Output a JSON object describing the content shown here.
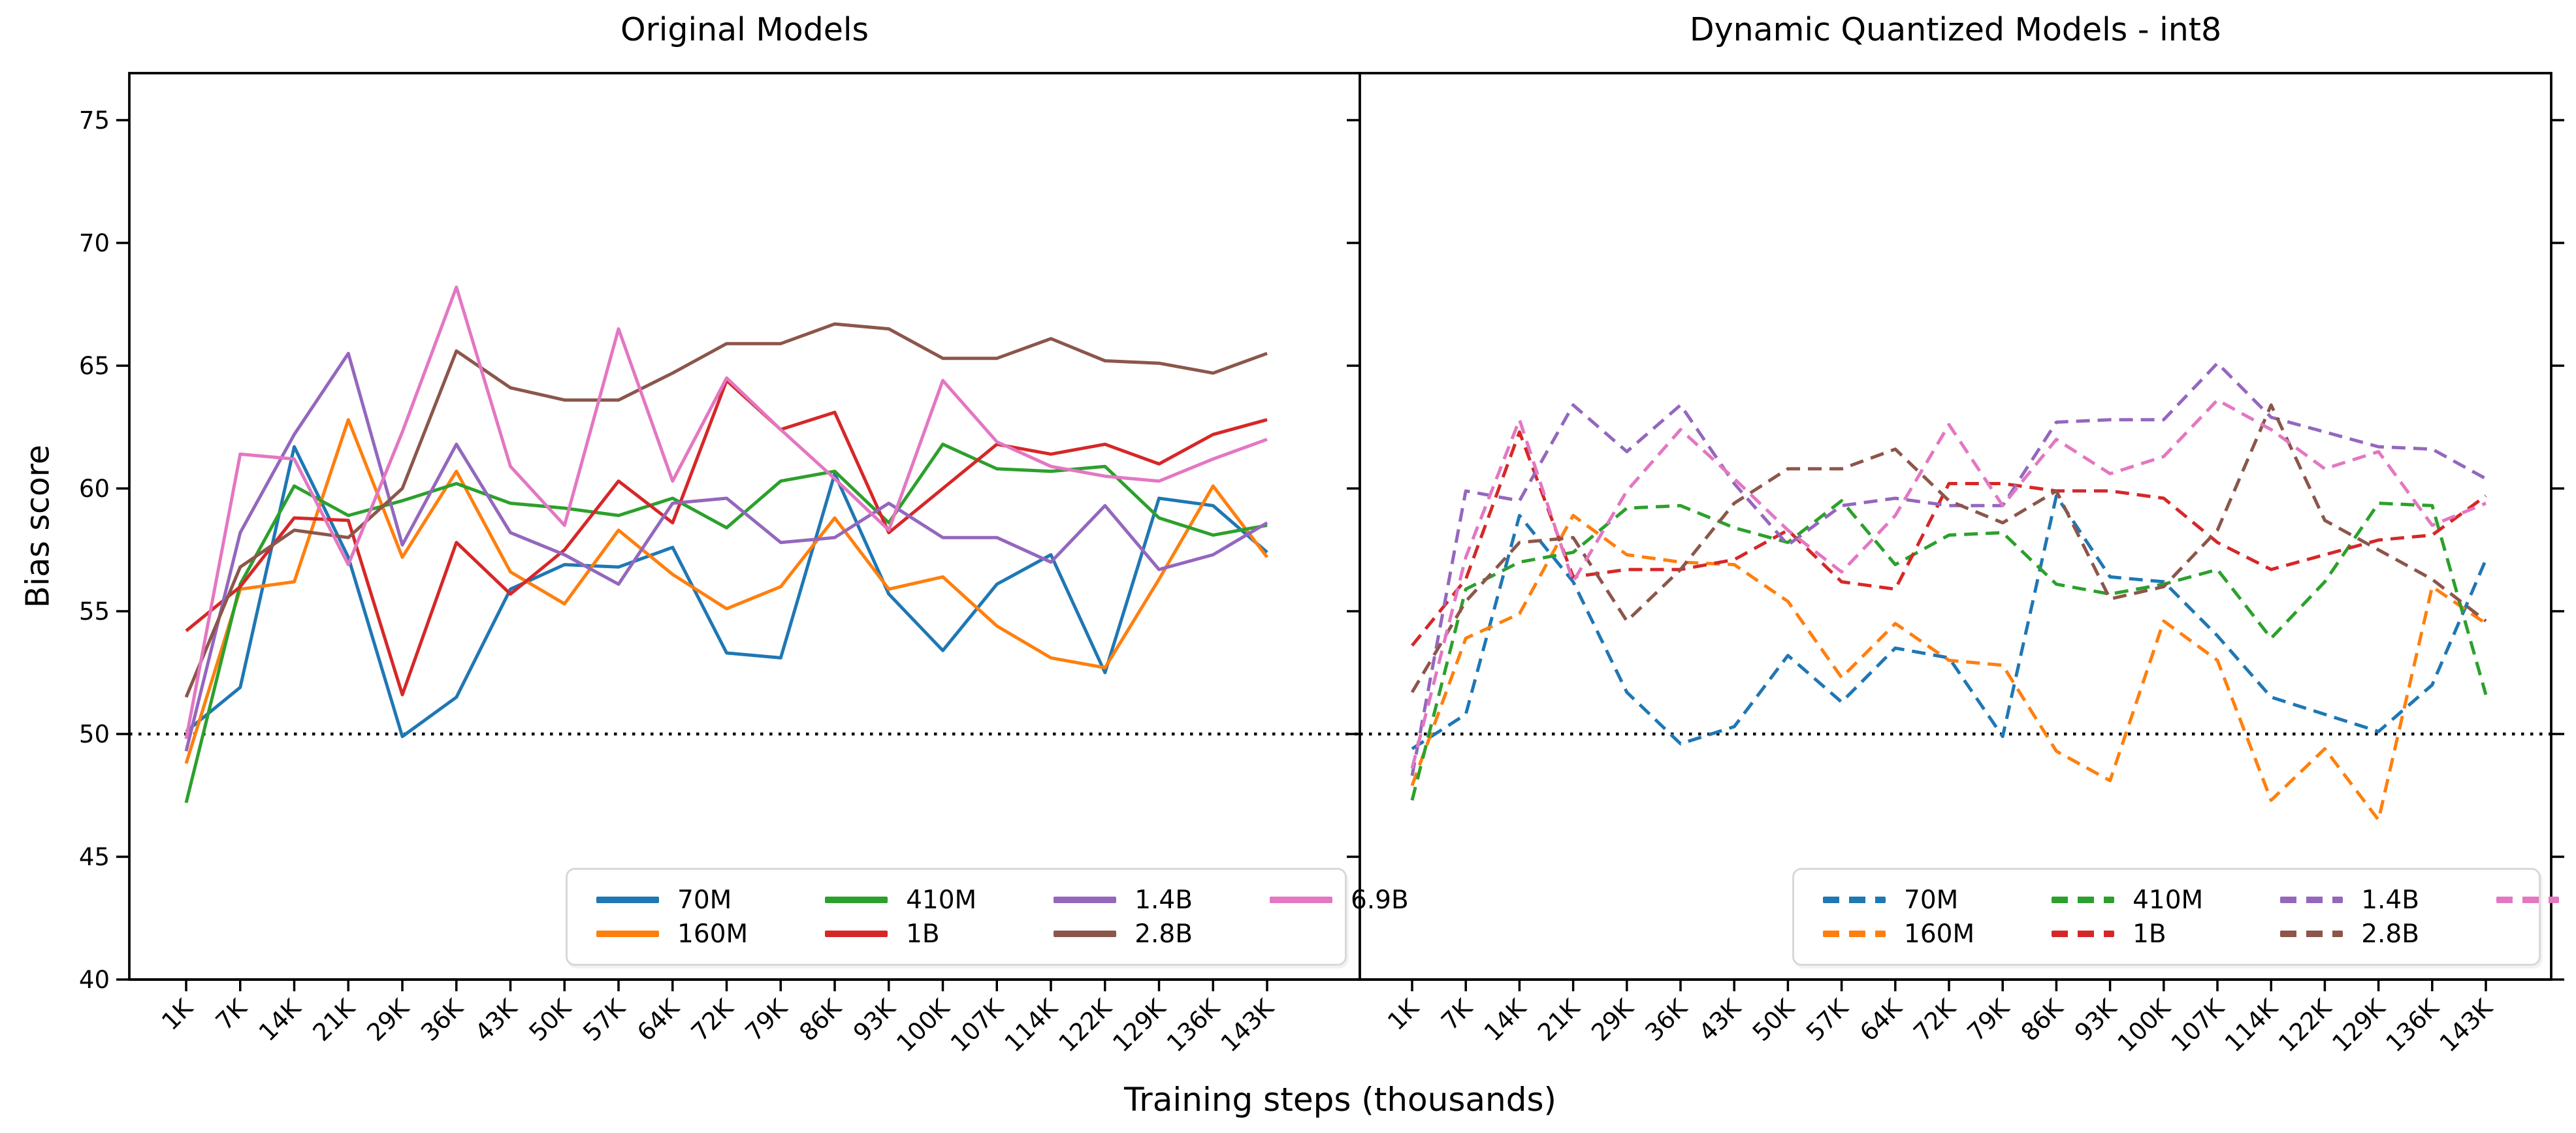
{
  "figure": {
    "background": "#ffffff"
  },
  "y_axis": {
    "label": "Bias score",
    "ticks": [
      40,
      45,
      50,
      55,
      60,
      65,
      70,
      75
    ],
    "range": [
      40,
      76.9
    ]
  },
  "x_axis": {
    "label": "Training steps (thousands)"
  },
  "reference_line": {
    "value": 50,
    "style": "dotted",
    "color": "#000000"
  },
  "legend": {
    "labels": [
      "70M",
      "160M",
      "410M",
      "1B",
      "1.4B",
      "2.8B",
      "6.9B"
    ]
  },
  "chart_data": [
    {
      "type": "line",
      "title": "Original Models",
      "line_style": "solid",
      "xlabel": "Training steps (thousands)",
      "ylabel": "Bias score",
      "ylim": [
        40,
        76.9
      ],
      "grid": false,
      "legend_position": "lower right",
      "categories": [
        "1K",
        "7K",
        "14K",
        "21K",
        "29K",
        "36K",
        "43K",
        "50K",
        "57K",
        "64K",
        "72K",
        "79K",
        "86K",
        "93K",
        "100K",
        "107K",
        "114K",
        "122K",
        "129K",
        "136K",
        "143K"
      ],
      "series": [
        {
          "name": "70M",
          "color": "#1f77b4",
          "values": [
            50.1,
            51.9,
            61.7,
            57.2,
            49.9,
            51.5,
            55.9,
            56.9,
            56.8,
            57.6,
            53.3,
            53.1,
            60.6,
            55.7,
            53.4,
            56.1,
            57.3,
            52.5,
            59.6,
            59.3,
            57.4
          ]
        },
        {
          "name": "160M",
          "color": "#ff7f0e",
          "values": [
            48.8,
            55.9,
            56.2,
            62.8,
            57.2,
            60.7,
            56.6,
            55.3,
            58.3,
            56.5,
            55.1,
            56.0,
            58.8,
            55.9,
            56.4,
            54.4,
            53.1,
            52.7,
            56.3,
            60.1,
            57.2
          ]
        },
        {
          "name": "410M",
          "color": "#2ca02c",
          "values": [
            47.2,
            56.1,
            60.1,
            58.9,
            59.5,
            60.2,
            59.4,
            59.2,
            58.9,
            59.6,
            58.4,
            60.3,
            60.7,
            58.6,
            61.8,
            60.8,
            60.7,
            60.9,
            58.8,
            58.1,
            58.5
          ]
        },
        {
          "name": "1B",
          "color": "#d62728",
          "values": [
            54.2,
            56.0,
            58.8,
            58.7,
            51.6,
            57.8,
            55.7,
            57.5,
            60.3,
            58.6,
            64.4,
            62.4,
            63.1,
            58.2,
            60.0,
            61.8,
            61.4,
            61.8,
            61.0,
            62.2,
            62.8
          ]
        },
        {
          "name": "1.4B",
          "color": "#9467bd",
          "values": [
            49.3,
            58.2,
            62.2,
            65.5,
            57.7,
            61.8,
            58.2,
            57.3,
            56.1,
            59.4,
            59.6,
            57.8,
            58.0,
            59.4,
            58.0,
            58.0,
            57.0,
            59.3,
            56.7,
            57.3,
            58.6
          ]
        },
        {
          "name": "2.8B",
          "color": "#8c564b",
          "values": [
            51.5,
            56.8,
            58.3,
            58.0,
            60.0,
            65.6,
            64.1,
            63.6,
            63.6,
            64.7,
            65.9,
            65.9,
            66.7,
            66.5,
            65.3,
            65.3,
            66.1,
            65.2,
            65.1,
            64.7,
            65.5
          ]
        },
        {
          "name": "6.9B",
          "color": "#e377c2",
          "values": [
            49.8,
            61.4,
            61.2,
            56.9,
            62.3,
            68.2,
            60.9,
            58.5,
            66.5,
            60.3,
            64.5,
            62.4,
            60.4,
            58.3,
            64.4,
            61.9,
            60.9,
            60.5,
            60.3,
            61.2,
            62.0
          ]
        }
      ]
    },
    {
      "type": "line",
      "title": "Dynamic Quantized Models - int8",
      "line_style": "dashed",
      "xlabel": "Training steps (thousands)",
      "ylabel": "Bias score",
      "ylim": [
        40,
        76.9
      ],
      "grid": false,
      "legend_position": "lower right",
      "categories": [
        "1K",
        "7K",
        "14K",
        "21K",
        "29K",
        "36K",
        "43K",
        "50K",
        "57K",
        "64K",
        "72K",
        "79K",
        "86K",
        "93K",
        "100K",
        "107K",
        "114K",
        "122K",
        "129K",
        "136K",
        "143K"
      ],
      "series": [
        {
          "name": "70M",
          "color": "#1f77b4",
          "values": [
            49.4,
            50.8,
            58.9,
            56.2,
            51.7,
            49.6,
            50.3,
            53.2,
            51.3,
            53.5,
            53.1,
            49.9,
            59.7,
            56.4,
            56.2,
            54.0,
            51.5,
            50.8,
            50.1,
            52.0,
            57.1
          ]
        },
        {
          "name": "160M",
          "color": "#ff7f0e",
          "values": [
            47.9,
            53.9,
            54.9,
            58.9,
            57.3,
            57.0,
            56.9,
            55.4,
            52.3,
            54.5,
            53.0,
            52.8,
            49.3,
            48.1,
            54.6,
            53.0,
            47.3,
            49.4,
            46.5,
            56.0,
            54.5
          ]
        },
        {
          "name": "410M",
          "color": "#2ca02c",
          "values": [
            47.3,
            55.9,
            57.0,
            57.4,
            59.2,
            59.3,
            58.4,
            57.8,
            59.5,
            56.9,
            58.1,
            58.2,
            56.1,
            55.7,
            56.1,
            56.7,
            53.9,
            56.2,
            59.4,
            59.3,
            51.6
          ]
        },
        {
          "name": "1B",
          "color": "#d62728",
          "values": [
            53.6,
            56.3,
            62.3,
            56.4,
            56.7,
            56.7,
            57.1,
            58.3,
            56.2,
            55.9,
            60.2,
            60.2,
            59.9,
            59.9,
            59.6,
            57.8,
            56.7,
            57.3,
            57.9,
            58.1,
            59.7
          ]
        },
        {
          "name": "1.4B",
          "color": "#9467bd",
          "values": [
            48.3,
            59.9,
            59.5,
            63.4,
            61.5,
            63.4,
            60.2,
            57.7,
            59.3,
            59.6,
            59.3,
            59.3,
            62.7,
            62.8,
            62.8,
            65.1,
            62.9,
            62.3,
            61.7,
            61.6,
            60.4
          ]
        },
        {
          "name": "2.8B",
          "color": "#8c564b",
          "values": [
            51.7,
            55.4,
            57.8,
            58.0,
            54.6,
            56.7,
            59.4,
            60.8,
            60.8,
            61.6,
            59.5,
            58.6,
            59.9,
            55.5,
            56.0,
            58.3,
            63.4,
            58.7,
            57.5,
            56.3,
            54.6
          ]
        },
        {
          "name": "6.9B",
          "color": "#e377c2",
          "values": [
            48.6,
            57.2,
            62.8,
            56.2,
            59.9,
            62.4,
            60.4,
            58.3,
            56.6,
            58.9,
            62.6,
            59.3,
            62.0,
            60.6,
            61.3,
            63.6,
            62.4,
            60.8,
            61.5,
            58.5,
            59.4
          ]
        }
      ]
    }
  ]
}
